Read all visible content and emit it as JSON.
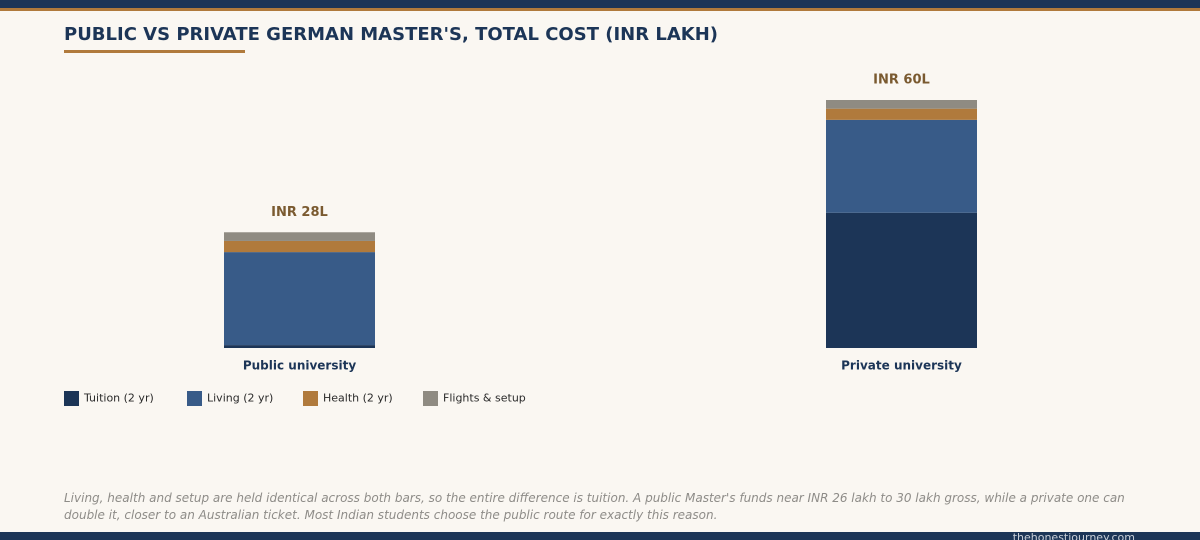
{
  "chart_data": {
    "type": "stacked_bar",
    "title": "PUBLIC VS PRIVATE GERMAN MASTER'S, TOTAL COST (INR LAKH)",
    "categories": [
      "Public university",
      "Private university"
    ],
    "series": [
      {
        "name": "Tuition (2 yr)",
        "color": "#1c3557",
        "values": [
          0.7,
          32.7
        ]
      },
      {
        "name": "Living (2 yr)",
        "color": "#385b88",
        "values": [
          22.5,
          22.5
        ]
      },
      {
        "name": "Health (2 yr)",
        "color": "#b07a3c",
        "values": [
          2.7,
          2.7
        ]
      },
      {
        "name": "Flights & setup",
        "color": "#8f8b82",
        "values": [
          2.1,
          2.1
        ]
      }
    ],
    "totals": [
      28,
      60
    ],
    "total_labels": [
      "INR 28L",
      "INR 60L"
    ],
    "note": "Living, health and setup are held identical across both bars, so the entire difference is tuition. A public Master's funds near INR 26 lakh to 30 lakh gross, while a private one can double it, closer to an Australian ticket. Most Indian students choose the public route for exactly this reason.",
    "source": "thehonestjourney.com"
  }
}
